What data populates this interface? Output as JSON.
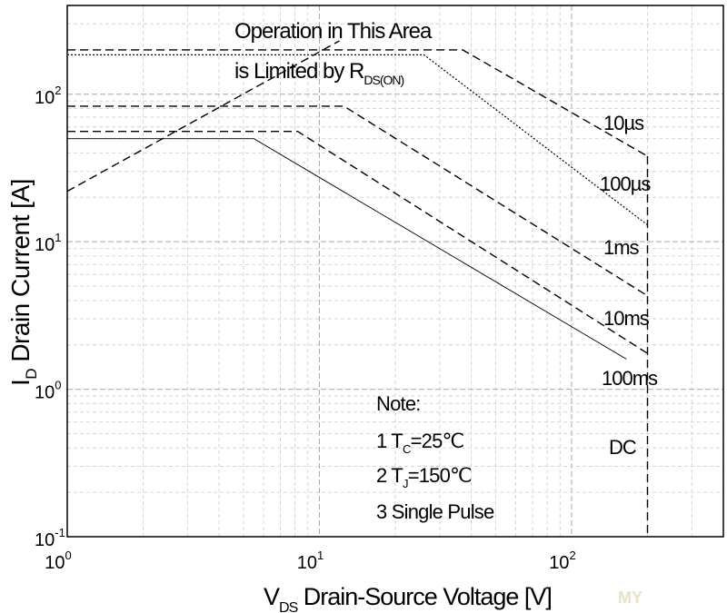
{
  "chart_data": {
    "type": "line",
    "x_scale": "log",
    "y_scale": "log",
    "xlim": [
      1,
      400
    ],
    "ylim": [
      0.1,
      400
    ],
    "grid": true,
    "xlabel": {
      "main": "V",
      "sub": "DS",
      "rest": " Drain-Source Voltage [V]"
    },
    "ylabel": {
      "main": "I",
      "sub": "D",
      "rest": " Drain Current [A]"
    },
    "x_ticks": [
      {
        "value": 1,
        "base": "10",
        "exp": "0"
      },
      {
        "value": 10,
        "base": "10",
        "exp": "1"
      },
      {
        "value": 100,
        "base": "10",
        "exp": "2"
      }
    ],
    "y_ticks": [
      {
        "value": 0.1,
        "base": "10",
        "exp": "-1"
      },
      {
        "value": 1,
        "base": "10",
        "exp": "0"
      },
      {
        "value": 10,
        "base": "10",
        "exp": "1"
      },
      {
        "value": 100,
        "base": "10",
        "exp": "2"
      }
    ],
    "rds_limit": {
      "line1": "Operation in This Area",
      "line2_main": "is Limited by R",
      "line2_sub": "DS(ON)",
      "points": [
        [
          1,
          22
        ],
        [
          5.5,
          110
        ],
        [
          12,
          230
        ]
      ]
    },
    "series": [
      {
        "name": "10µs",
        "style": "dashed",
        "points": [
          [
            1,
            200
          ],
          [
            37,
            200
          ],
          [
            200,
            38
          ]
        ]
      },
      {
        "name": "100µs",
        "style": "dotted",
        "points": [
          [
            1,
            185
          ],
          [
            26,
            185
          ],
          [
            200,
            13
          ]
        ]
      },
      {
        "name": "1ms",
        "style": "dashed",
        "points": [
          [
            1,
            83
          ],
          [
            12.5,
            83
          ],
          [
            200,
            4.3
          ]
        ]
      },
      {
        "name": "10ms",
        "style": "dashed",
        "points": [
          [
            1,
            56
          ],
          [
            8.2,
            56
          ],
          [
            200,
            1.75
          ]
        ]
      },
      {
        "name": "100ms",
        "style": "solid",
        "points": [
          [
            1,
            50
          ],
          [
            5.5,
            50
          ],
          [
            165,
            1.6
          ]
        ]
      },
      {
        "name": "DC",
        "style": "dashed",
        "points": [
          [
            200,
            38
          ],
          [
            200,
            0.1
          ]
        ]
      }
    ],
    "note": {
      "title": "Note:",
      "item1_prefix": "1 T",
      "item1_sub": "C",
      "item1_rest": "=25℃",
      "item2_prefix": "2 T",
      "item2_sub": "J",
      "item2_rest": "=150℃",
      "item3": "3 Single Pulse"
    },
    "watermark": "MY"
  }
}
